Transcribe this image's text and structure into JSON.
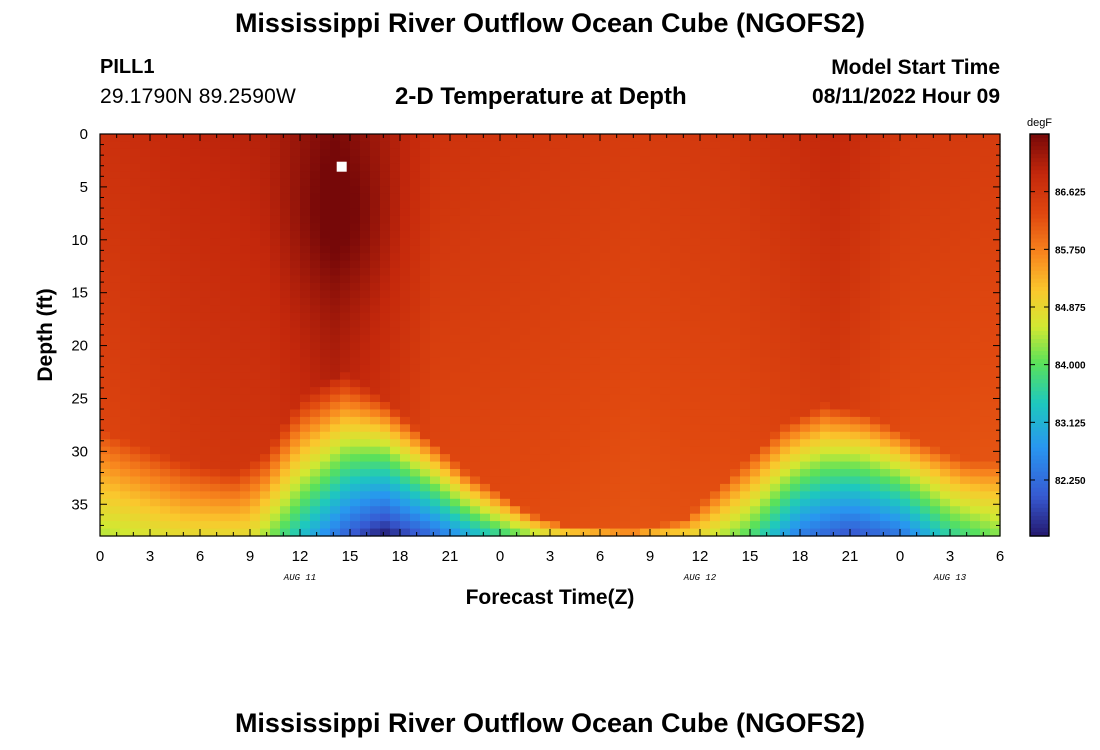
{
  "header": {
    "title": "Mississippi River Outflow Ocean Cube (NGOFS2)",
    "station": "PILL1",
    "coords": "29.1790N  89.2590W",
    "subtitle": "2-D Temperature at Depth",
    "model_start_label": "Model Start Time",
    "model_start_value": "08/11/2022 Hour 09"
  },
  "footer": {
    "title": "Mississippi River Outflow Ocean Cube (NGOFS2)"
  },
  "chart_data": {
    "type": "heatmap",
    "title": "2-D Temperature at Depth",
    "xlabel": "Forecast Time(Z)",
    "ylabel": "Depth (ft)",
    "x_unit": "hours since 08/11/2022 00Z",
    "xlim": [
      0,
      54
    ],
    "ylim": [
      0,
      38
    ],
    "y_inverted": true,
    "x_ticks": [
      0,
      3,
      6,
      9,
      12,
      15,
      18,
      21,
      24,
      27,
      30,
      33,
      36,
      39,
      42,
      45,
      48,
      51,
      54
    ],
    "x_tick_labels": [
      "0",
      "3",
      "6",
      "9",
      "12",
      "15",
      "18",
      "21",
      "0",
      "3",
      "6",
      "9",
      "12",
      "15",
      "18",
      "21",
      "0",
      "3",
      "6"
    ],
    "date_labels": [
      {
        "x": 12,
        "text": "AUG 11"
      },
      {
        "x": 36,
        "text": "AUG 12"
      },
      {
        "x": 51,
        "text": "AUG 13"
      }
    ],
    "y_ticks": [
      0,
      5,
      10,
      15,
      20,
      25,
      30,
      35
    ],
    "colorbar": {
      "unit": "degF",
      "min": 81.4,
      "max": 87.5,
      "ticks": [
        82.25,
        83.125,
        84.0,
        84.875,
        85.75,
        86.625
      ],
      "tick_labels": [
        "82.250",
        "83.125",
        "84.000",
        "84.875",
        "85.750",
        "86.625"
      ]
    },
    "surface_temp": [
      [
        0,
        86.7
      ],
      [
        5,
        86.9
      ],
      [
        10,
        87.0
      ],
      [
        14,
        87.4
      ],
      [
        16,
        87.2
      ],
      [
        20,
        86.7
      ],
      [
        26,
        86.6
      ],
      [
        32,
        86.5
      ],
      [
        38,
        86.6
      ],
      [
        40,
        86.7
      ],
      [
        44,
        86.9
      ],
      [
        48,
        86.6
      ],
      [
        54,
        86.5
      ]
    ],
    "mixed_layer_depth": [
      [
        0,
        28
      ],
      [
        5,
        31
      ],
      [
        8,
        32
      ],
      [
        10,
        30
      ],
      [
        12,
        25
      ],
      [
        14.5,
        22.5
      ],
      [
        17,
        25
      ],
      [
        22,
        32
      ],
      [
        26,
        36
      ],
      [
        28,
        37
      ],
      [
        32,
        37.5
      ],
      [
        35,
        36.5
      ],
      [
        38,
        32
      ],
      [
        41,
        27.5
      ],
      [
        43.5,
        25.5
      ],
      [
        46,
        26.5
      ],
      [
        49,
        29
      ],
      [
        52,
        31
      ],
      [
        54,
        31
      ]
    ],
    "bottom_min_temp": [
      [
        0,
        84.4
      ],
      [
        5,
        84.8
      ],
      [
        9,
        84.8
      ],
      [
        12,
        83.3
      ],
      [
        15,
        82.0
      ],
      [
        17,
        81.4
      ],
      [
        20,
        82.2
      ],
      [
        23,
        83.3
      ],
      [
        27,
        84.6
      ],
      [
        31,
        85.0
      ],
      [
        36,
        84.8
      ],
      [
        39,
        83.9
      ],
      [
        42,
        82.4
      ],
      [
        45,
        81.9
      ],
      [
        48,
        82.3
      ],
      [
        51,
        83.6
      ],
      [
        54,
        84.2
      ]
    ],
    "missing_cells": [
      {
        "x": 14.5,
        "depth": 3
      }
    ]
  }
}
